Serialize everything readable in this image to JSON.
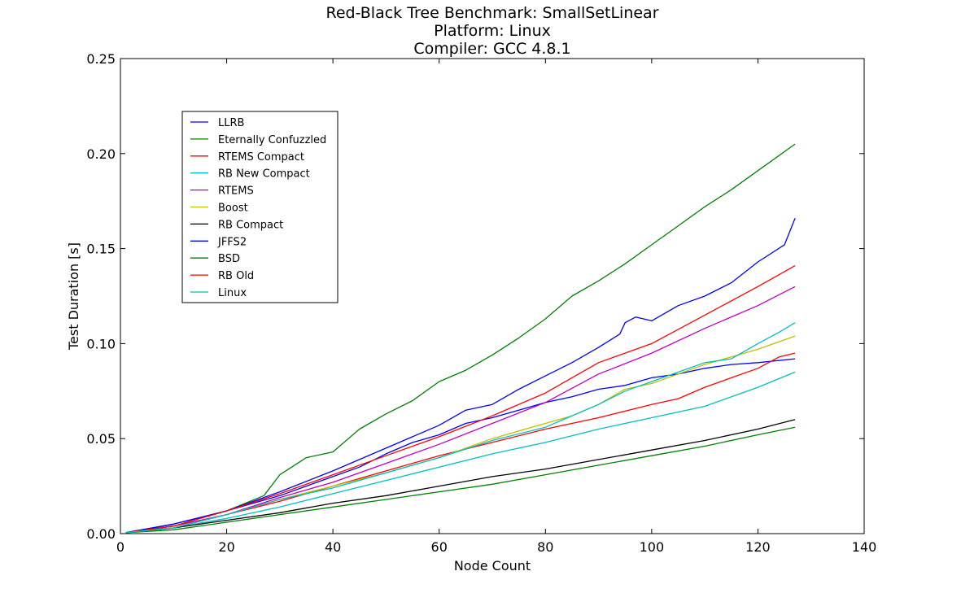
{
  "chart_data": {
    "type": "line",
    "title_lines": [
      "Red-Black Tree Benchmark: SmallSetLinear",
      "Platform: Linux",
      "Compiler: GCC 4.8.1"
    ],
    "xlabel": "Node Count",
    "ylabel": "Test Duration [s]",
    "xlim": [
      0,
      140
    ],
    "ylim": [
      0,
      0.25
    ],
    "x_ticks": [
      0,
      20,
      40,
      60,
      80,
      100,
      120,
      140
    ],
    "y_ticks": [
      0.0,
      0.05,
      0.1,
      0.15,
      0.2,
      0.25
    ],
    "x_tick_labels": [
      "0",
      "20",
      "40",
      "60",
      "80",
      "100",
      "120",
      "140"
    ],
    "y_tick_labels": [
      "0.00",
      "0.05",
      "0.10",
      "0.15",
      "0.20",
      "0.25"
    ],
    "grid": false,
    "legend_position": "upper-left",
    "series": [
      {
        "name": "LLRB",
        "color": "#0000ff",
        "points": [
          [
            1,
            0.0005
          ],
          [
            10,
            0.005
          ],
          [
            20,
            0.012
          ],
          [
            30,
            0.02
          ],
          [
            35,
            0.025
          ],
          [
            40,
            0.03
          ],
          [
            45,
            0.035
          ],
          [
            50,
            0.042
          ],
          [
            55,
            0.048
          ],
          [
            60,
            0.052
          ],
          [
            65,
            0.058
          ],
          [
            70,
            0.061
          ],
          [
            75,
            0.065
          ],
          [
            80,
            0.069
          ],
          [
            85,
            0.072
          ],
          [
            90,
            0.076
          ],
          [
            95,
            0.078
          ],
          [
            100,
            0.082
          ],
          [
            105,
            0.084
          ],
          [
            110,
            0.087
          ],
          [
            115,
            0.089
          ],
          [
            120,
            0.09
          ],
          [
            127,
            0.092
          ]
        ]
      },
      {
        "name": "Eternally Confuzzled",
        "color": "#008000",
        "points": [
          [
            1,
            0.0005
          ],
          [
            10,
            0.004
          ],
          [
            20,
            0.012
          ],
          [
            27,
            0.02
          ],
          [
            30,
            0.031
          ],
          [
            35,
            0.04
          ],
          [
            40,
            0.043
          ],
          [
            45,
            0.055
          ],
          [
            50,
            0.063
          ],
          [
            55,
            0.07
          ],
          [
            60,
            0.08
          ],
          [
            65,
            0.086
          ],
          [
            70,
            0.094
          ],
          [
            75,
            0.103
          ],
          [
            80,
            0.113
          ],
          [
            85,
            0.125
          ],
          [
            90,
            0.133
          ],
          [
            95,
            0.142
          ],
          [
            100,
            0.152
          ],
          [
            105,
            0.162
          ],
          [
            110,
            0.172
          ],
          [
            115,
            0.181
          ],
          [
            120,
            0.191
          ],
          [
            127,
            0.205
          ]
        ]
      },
      {
        "name": "RTEMS Compact",
        "color": "#ff0000",
        "points": [
          [
            1,
            0.0005
          ],
          [
            10,
            0.003
          ],
          [
            20,
            0.01
          ],
          [
            30,
            0.017
          ],
          [
            40,
            0.025
          ],
          [
            50,
            0.033
          ],
          [
            60,
            0.041
          ],
          [
            70,
            0.048
          ],
          [
            80,
            0.055
          ],
          [
            90,
            0.061
          ],
          [
            100,
            0.068
          ],
          [
            105,
            0.071
          ],
          [
            110,
            0.077
          ],
          [
            115,
            0.082
          ],
          [
            120,
            0.087
          ],
          [
            124,
            0.093
          ],
          [
            127,
            0.095
          ]
        ]
      },
      {
        "name": "RB New Compact",
        "color": "#00bfbf",
        "points": [
          [
            1,
            0.0005
          ],
          [
            10,
            0.003
          ],
          [
            20,
            0.008
          ],
          [
            30,
            0.014
          ],
          [
            40,
            0.021
          ],
          [
            50,
            0.028
          ],
          [
            60,
            0.035
          ],
          [
            70,
            0.042
          ],
          [
            80,
            0.048
          ],
          [
            90,
            0.055
          ],
          [
            100,
            0.061
          ],
          [
            110,
            0.067
          ],
          [
            120,
            0.077
          ],
          [
            127,
            0.085
          ]
        ]
      },
      {
        "name": "RTEMS",
        "color": "#bf00bf",
        "points": [
          [
            1,
            0.0005
          ],
          [
            10,
            0.004
          ],
          [
            20,
            0.01
          ],
          [
            30,
            0.019
          ],
          [
            40,
            0.027
          ],
          [
            50,
            0.037
          ],
          [
            60,
            0.047
          ],
          [
            70,
            0.058
          ],
          [
            80,
            0.069
          ],
          [
            90,
            0.084
          ],
          [
            100,
            0.095
          ],
          [
            110,
            0.108
          ],
          [
            120,
            0.12
          ],
          [
            127,
            0.13
          ]
        ]
      },
      {
        "name": "Boost",
        "color": "#bfbf00",
        "points": [
          [
            1,
            0.0005
          ],
          [
            10,
            0.003
          ],
          [
            20,
            0.01
          ],
          [
            30,
            0.018
          ],
          [
            40,
            0.025
          ],
          [
            50,
            0.032
          ],
          [
            60,
            0.04
          ],
          [
            70,
            0.05
          ],
          [
            80,
            0.058
          ],
          [
            85,
            0.062
          ],
          [
            90,
            0.068
          ],
          [
            95,
            0.076
          ],
          [
            100,
            0.079
          ],
          [
            105,
            0.084
          ],
          [
            110,
            0.089
          ],
          [
            115,
            0.093
          ],
          [
            120,
            0.097
          ],
          [
            127,
            0.104
          ]
        ]
      },
      {
        "name": "RB Compact",
        "color": "#000000",
        "points": [
          [
            1,
            0.0005
          ],
          [
            10,
            0.003
          ],
          [
            20,
            0.007
          ],
          [
            30,
            0.011
          ],
          [
            40,
            0.016
          ],
          [
            50,
            0.02
          ],
          [
            60,
            0.025
          ],
          [
            70,
            0.03
          ],
          [
            80,
            0.034
          ],
          [
            90,
            0.039
          ],
          [
            100,
            0.044
          ],
          [
            110,
            0.049
          ],
          [
            120,
            0.055
          ],
          [
            127,
            0.06
          ]
        ]
      },
      {
        "name": "JFFS2",
        "color": "#0000ff",
        "points": [
          [
            1,
            0.0005
          ],
          [
            10,
            0.005
          ],
          [
            20,
            0.012
          ],
          [
            30,
            0.022
          ],
          [
            40,
            0.033
          ],
          [
            50,
            0.045
          ],
          [
            60,
            0.057
          ],
          [
            65,
            0.065
          ],
          [
            70,
            0.068
          ],
          [
            75,
            0.076
          ],
          [
            80,
            0.083
          ],
          [
            85,
            0.09
          ],
          [
            90,
            0.098
          ],
          [
            94,
            0.105
          ],
          [
            95,
            0.111
          ],
          [
            97,
            0.114
          ],
          [
            100,
            0.112
          ],
          [
            105,
            0.12
          ],
          [
            110,
            0.125
          ],
          [
            115,
            0.132
          ],
          [
            120,
            0.143
          ],
          [
            125,
            0.152
          ],
          [
            127,
            0.166
          ]
        ]
      },
      {
        "name": "BSD",
        "color": "#008000",
        "points": [
          [
            1,
            0.0005
          ],
          [
            10,
            0.002
          ],
          [
            20,
            0.006
          ],
          [
            30,
            0.01
          ],
          [
            40,
            0.014
          ],
          [
            50,
            0.018
          ],
          [
            60,
            0.022
          ],
          [
            70,
            0.026
          ],
          [
            80,
            0.031
          ],
          [
            90,
            0.036
          ],
          [
            100,
            0.041
          ],
          [
            110,
            0.046
          ],
          [
            120,
            0.052
          ],
          [
            127,
            0.056
          ]
        ]
      },
      {
        "name": "RB Old",
        "color": "#ff0000",
        "points": [
          [
            1,
            0.0005
          ],
          [
            10,
            0.004
          ],
          [
            20,
            0.012
          ],
          [
            30,
            0.021
          ],
          [
            40,
            0.031
          ],
          [
            50,
            0.041
          ],
          [
            60,
            0.051
          ],
          [
            70,
            0.062
          ],
          [
            80,
            0.074
          ],
          [
            90,
            0.09
          ],
          [
            100,
            0.1
          ],
          [
            110,
            0.115
          ],
          [
            120,
            0.13
          ],
          [
            127,
            0.141
          ]
        ]
      },
      {
        "name": "Linux",
        "color": "#00bfbf",
        "points": [
          [
            1,
            0.0005
          ],
          [
            10,
            0.003
          ],
          [
            20,
            0.01
          ],
          [
            30,
            0.018
          ],
          [
            40,
            0.024
          ],
          [
            50,
            0.032
          ],
          [
            60,
            0.04
          ],
          [
            70,
            0.049
          ],
          [
            80,
            0.056
          ],
          [
            90,
            0.068
          ],
          [
            95,
            0.075
          ],
          [
            100,
            0.08
          ],
          [
            105,
            0.085
          ],
          [
            110,
            0.09
          ],
          [
            115,
            0.092
          ],
          [
            120,
            0.1
          ],
          [
            124,
            0.106
          ],
          [
            127,
            0.111
          ]
        ]
      }
    ]
  }
}
